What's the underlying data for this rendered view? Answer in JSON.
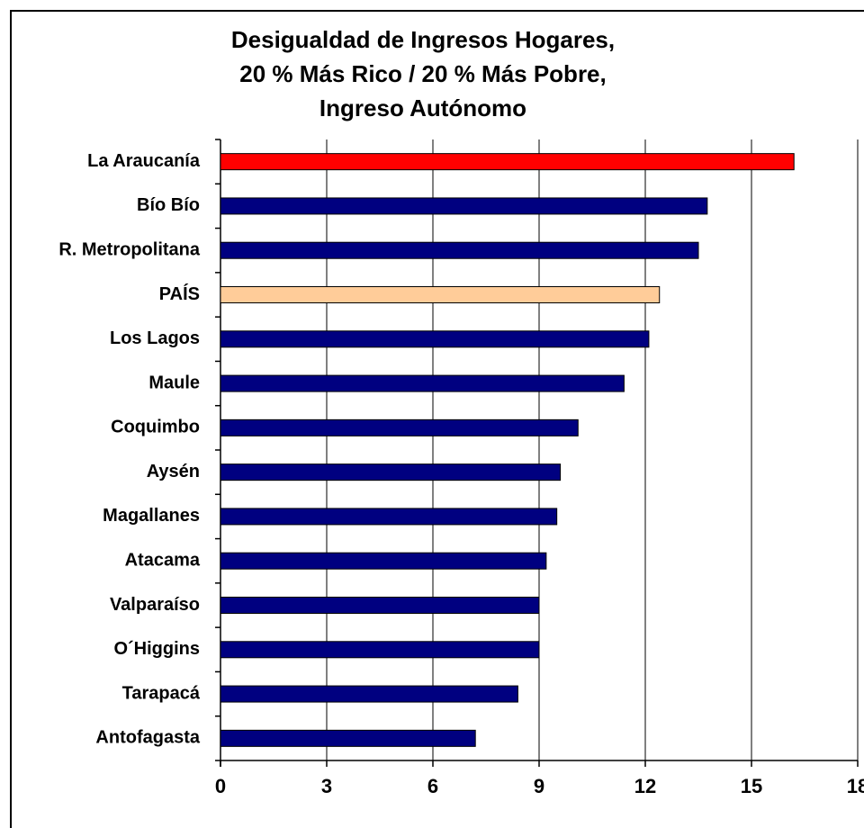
{
  "chart_data": {
    "type": "bar",
    "orientation": "horizontal",
    "title": [
      "Desigualdad de Ingresos Hogares,",
      "20 % Más Rico / 20 % Más Pobre,",
      "Ingreso Autónomo"
    ],
    "categories": [
      "La Araucanía",
      "Bío Bío",
      "R. Metropolitana",
      "PAÍS",
      "Los Lagos",
      "Maule",
      "Coquimbo",
      "Aysén",
      "Magallanes",
      "Atacama",
      "Valparaíso",
      "O´Higgins",
      "Tarapacá",
      "Antofagasta"
    ],
    "values": [
      16.2,
      13.75,
      13.5,
      12.4,
      12.1,
      11.4,
      10.1,
      9.6,
      9.5,
      9.2,
      9.0,
      9.0,
      8.4,
      7.2
    ],
    "colors": [
      "#ff0000",
      "#000080",
      "#000080",
      "#ffcc99",
      "#000080",
      "#000080",
      "#000080",
      "#000080",
      "#000080",
      "#000080",
      "#000080",
      "#000080",
      "#000080",
      "#000080"
    ],
    "xlim": [
      0,
      18
    ],
    "xticks": [
      0,
      3,
      6,
      9,
      12,
      15,
      18
    ],
    "grid": true
  }
}
